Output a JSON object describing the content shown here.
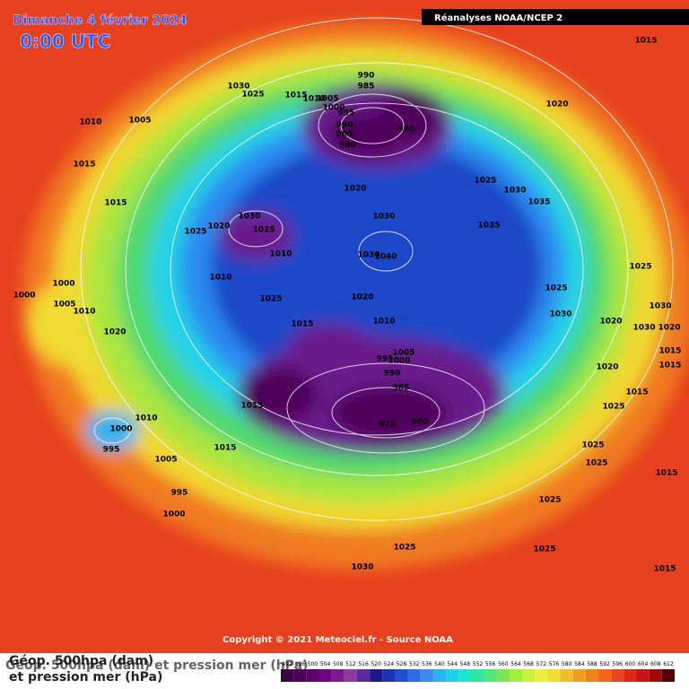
{
  "header": {
    "date": "Dimanche 4 février 2024",
    "time": "0:00 UTC",
    "source_banner": "Réanalyses NOAA/NCEP 2"
  },
  "copyright": "Copyright © 2021 Meteociel.fr - Source NOAA",
  "legend": {
    "title": "Géop. 500hpa (dam) et pression mer (hPa)",
    "title_lines": [
      "Géop. 500hpa (dam)",
      "et pression mer (hPa)"
    ],
    "values": [
      492,
      496,
      500,
      504,
      508,
      512,
      516,
      520,
      524,
      528,
      532,
      536,
      540,
      544,
      548,
      552,
      556,
      560,
      564,
      568,
      572,
      576,
      580,
      584,
      588,
      592,
      596,
      600,
      604,
      608,
      612
    ],
    "colors": [
      "#3c0046",
      "#4c005a",
      "#5e0070",
      "#700084",
      "#7a1a8c",
      "#8c3a9e",
      "#5a2a9a",
      "#1a1a8c",
      "#1e32b4",
      "#1e50d2",
      "#2a6ee6",
      "#3c8cf0",
      "#28b4f0",
      "#1ed2e6",
      "#1ee6c8",
      "#32e6a0",
      "#50e678",
      "#78e650",
      "#a0f03c",
      "#c8f03c",
      "#f0f03c",
      "#f0dc32",
      "#f0be28",
      "#f0a01e",
      "#f0821e",
      "#f0641e",
      "#e6461e",
      "#dc2814",
      "#c81414",
      "#a00a0a",
      "#500000"
    ]
  },
  "isobar_labels": [
    "1015",
    "1030",
    "1025",
    "1015",
    "1010",
    "1005",
    "990",
    "985",
    "1000",
    "995",
    "990",
    "985",
    "980",
    "990",
    "1020",
    "1010",
    "1005",
    "1015",
    "1015",
    "1020",
    "1025",
    "1030",
    "1035",
    "1030",
    "1020",
    "1025",
    "1025",
    "1030",
    "1035",
    "1010",
    "1030",
    "1040",
    "1010",
    "1025",
    "1000",
    "1000",
    "1025",
    "1020",
    "1025",
    "1005",
    "1010",
    "1030",
    "1030",
    "1015",
    "1010",
    "1020",
    "1030",
    "1020",
    "1020",
    "1005",
    "1000",
    "995",
    "1015",
    "990",
    "1020",
    "985",
    "1015",
    "1015",
    "1015",
    "1025",
    "1010",
    "975",
    "980",
    "1000",
    "995",
    "1015",
    "1025",
    "1005",
    "1025",
    "1015",
    "995",
    "1025",
    "1000",
    "1025",
    "1025",
    "1030",
    "1015"
  ]
}
